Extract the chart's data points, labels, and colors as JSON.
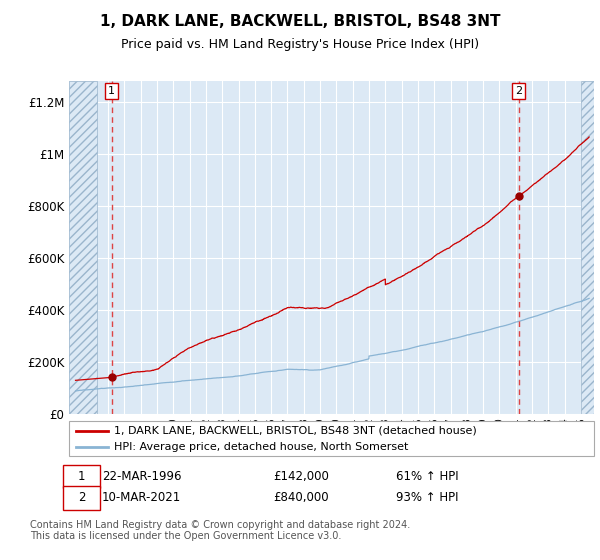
{
  "title": "1, DARK LANE, BACKWELL, BRISTOL, BS48 3NT",
  "subtitle": "Price paid vs. HM Land Registry's House Price Index (HPI)",
  "title_fontsize": 11,
  "subtitle_fontsize": 9,
  "plot_bg_color": "#dce9f5",
  "hatch_color": "#c5d8ea",
  "grid_color": "#ffffff",
  "red_line_color": "#cc0000",
  "blue_line_color": "#8ab4d4",
  "marker_color": "#990000",
  "dashed_line_color": "#dd4444",
  "sale1_year": 1996.22,
  "sale1_price": 142000,
  "sale1_label": "1",
  "sale2_year": 2021.19,
  "sale2_price": 840000,
  "sale2_label": "2",
  "ylim": [
    0,
    1280000
  ],
  "xlim_start": 1993.6,
  "xlim_end": 2025.8,
  "hatch_left_end": 1995.3,
  "hatch_right_start": 2025.0,
  "yticks": [
    0,
    200000,
    400000,
    600000,
    800000,
    1000000,
    1200000
  ],
  "ytick_labels": [
    "£0",
    "£200K",
    "£400K",
    "£600K",
    "£800K",
    "£1M",
    "£1.2M"
  ],
  "legend_line1": "1, DARK LANE, BACKWELL, BRISTOL, BS48 3NT (detached house)",
  "legend_line2": "HPI: Average price, detached house, North Somerset",
  "sale1_date": "22-MAR-1996",
  "sale1_amount": "£142,000",
  "sale1_hpi": "61% ↑ HPI",
  "sale2_date": "10-MAR-2021",
  "sale2_amount": "£840,000",
  "sale2_hpi": "93% ↑ HPI",
  "footnote": "Contains HM Land Registry data © Crown copyright and database right 2024.\nThis data is licensed under the Open Government Licence v3.0."
}
